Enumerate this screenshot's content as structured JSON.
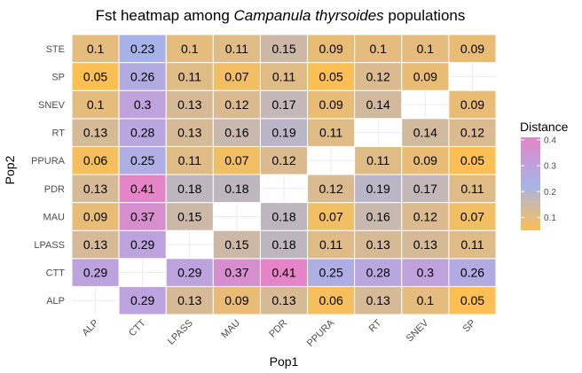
{
  "chart_data": {
    "type": "heatmap",
    "title_prefix": "Fst heatmap among ",
    "title_italic": "Campanula thyrsoides",
    "title_suffix": " populations",
    "xlabel": "Pop1",
    "ylabel": "Pop2",
    "x_categories": [
      "ALP",
      "CTT",
      "LPASS",
      "MAU",
      "PDR",
      "PPURA",
      "RT",
      "SNEV",
      "SP"
    ],
    "y_categories": [
      "ALP",
      "CTT",
      "LPASS",
      "MAU",
      "PDR",
      "PPURA",
      "RT",
      "SNEV",
      "SP",
      "STE"
    ],
    "values": [
      [
        null,
        0.29,
        0.13,
        0.09,
        0.13,
        0.06,
        0.13,
        0.1,
        0.05
      ],
      [
        0.29,
        null,
        0.29,
        0.37,
        0.41,
        0.25,
        0.28,
        0.3,
        0.26
      ],
      [
        0.13,
        0.29,
        null,
        0.15,
        0.18,
        0.11,
        0.13,
        0.13,
        0.11
      ],
      [
        0.09,
        0.37,
        0.15,
        null,
        0.18,
        0.07,
        0.16,
        0.12,
        0.07
      ],
      [
        0.13,
        0.41,
        0.18,
        0.18,
        null,
        0.12,
        0.19,
        0.17,
        0.11
      ],
      [
        0.06,
        0.25,
        0.11,
        0.07,
        0.12,
        null,
        0.11,
        0.09,
        0.05
      ],
      [
        0.13,
        0.28,
        0.13,
        0.16,
        0.19,
        0.11,
        null,
        0.14,
        0.12
      ],
      [
        0.1,
        0.3,
        0.13,
        0.12,
        0.17,
        0.09,
        0.14,
        null,
        0.09
      ],
      [
        0.05,
        0.26,
        0.11,
        0.07,
        0.11,
        0.05,
        0.12,
        0.09,
        null
      ],
      [
        0.1,
        0.23,
        0.1,
        0.11,
        0.15,
        0.09,
        0.1,
        0.1,
        0.09
      ]
    ],
    "legend": {
      "title": "Distance",
      "ticks": [
        0.1,
        0.2,
        0.3,
        0.4
      ],
      "range": [
        0.05,
        0.41
      ]
    },
    "colors": {
      "low": "#FBBF54",
      "mid": "#A7B3E8",
      "high": "#E584C6"
    },
    "grid": true
  }
}
